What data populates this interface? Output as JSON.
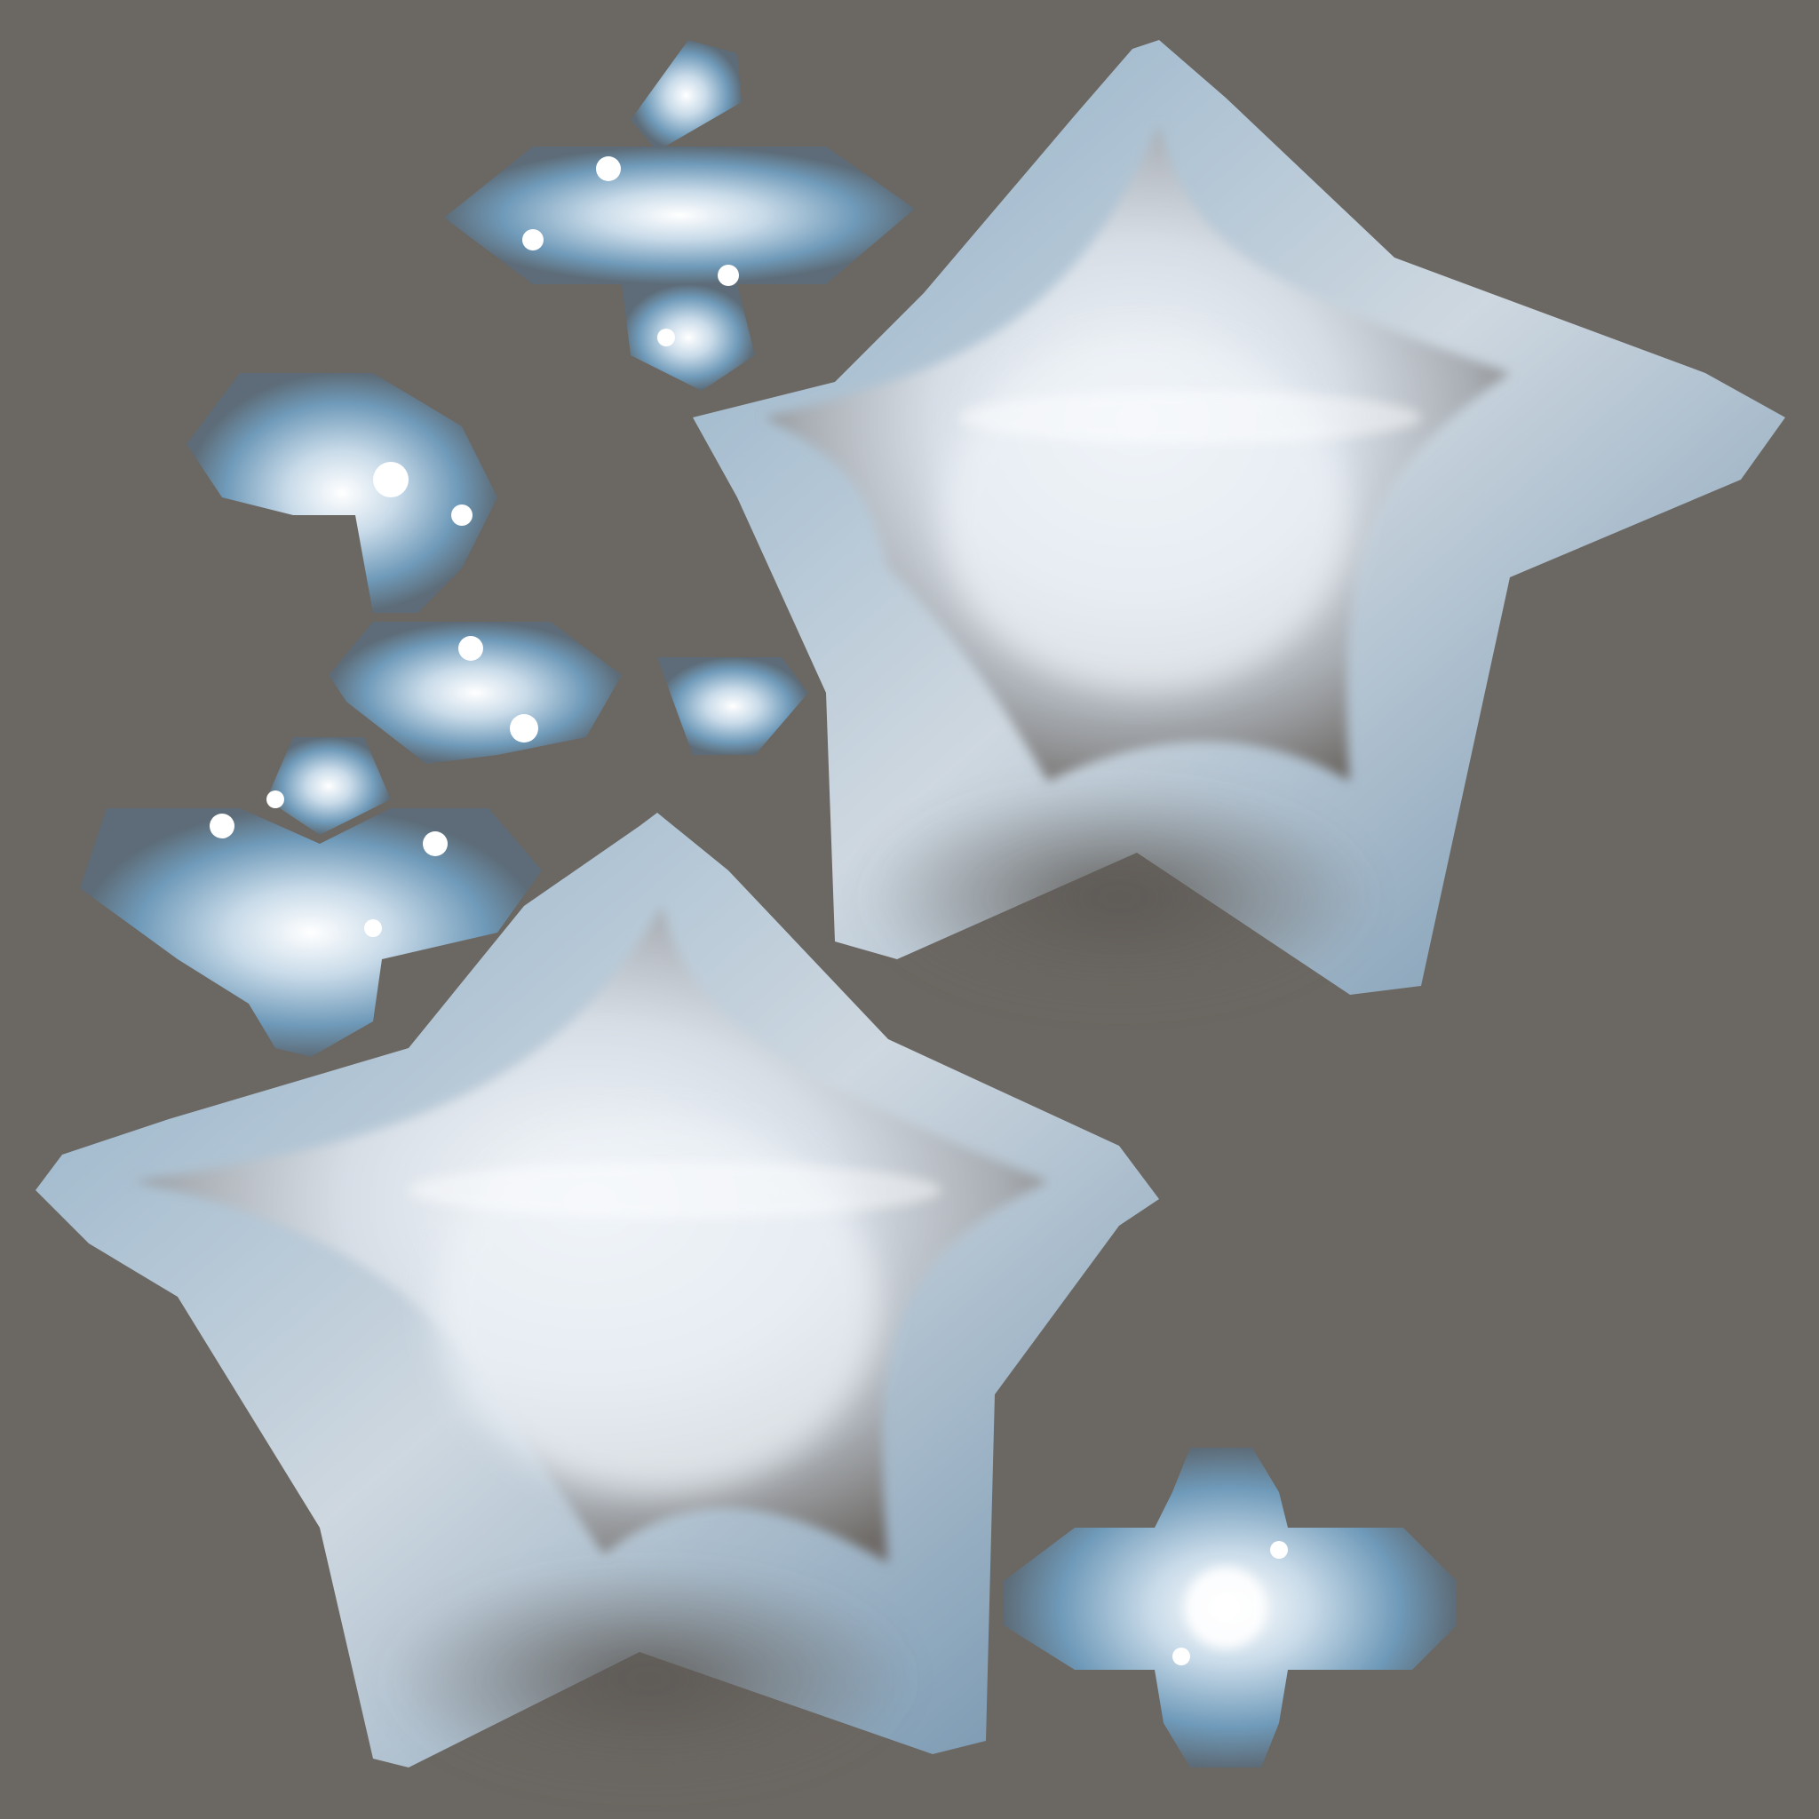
{
  "scene": {
    "background_color": "#6b6762",
    "foil_highlight_color": "#f4f7fb",
    "foil_mid_color": "#c9d3dc",
    "foil_blue_color": "#7ea6c4",
    "foil_shadow_color": "#5b5753",
    "objects": [
      "large-star-foil-top-right",
      "large-star-foil-bottom-left",
      "small-star-fragment-cluster-upper",
      "small-star-fragment-cluster-middle",
      "small-star-fragment-cluster-lower",
      "round-foil-fragment-bottom"
    ]
  }
}
